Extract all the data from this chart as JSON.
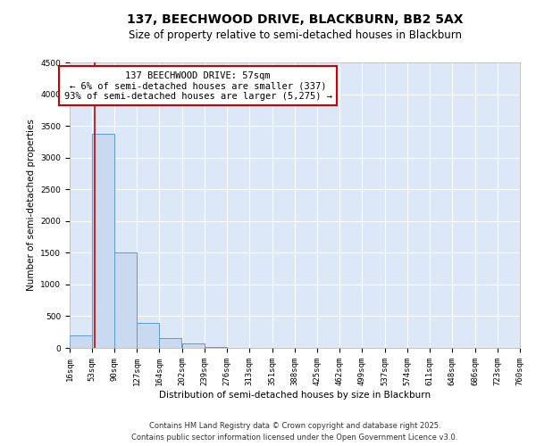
{
  "title": "137, BEECHWOOD DRIVE, BLACKBURN, BB2 5AX",
  "subtitle": "Size of property relative to semi-detached houses in Blackburn",
  "xlabel": "Distribution of semi-detached houses by size in Blackburn",
  "ylabel": "Number of semi-detached properties",
  "bin_edges": [
    16,
    53,
    90,
    127,
    164,
    202,
    239,
    276,
    313,
    351,
    388,
    425,
    462,
    499,
    537,
    574,
    611,
    648,
    686,
    723,
    760
  ],
  "bin_labels": [
    "16sqm",
    "53sqm",
    "90sqm",
    "127sqm",
    "164sqm",
    "202sqm",
    "239sqm",
    "276sqm",
    "313sqm",
    "351sqm",
    "388sqm",
    "425sqm",
    "462sqm",
    "499sqm",
    "537sqm",
    "574sqm",
    "611sqm",
    "648sqm",
    "686sqm",
    "723sqm",
    "760sqm"
  ],
  "bar_heights": [
    200,
    3380,
    1500,
    390,
    155,
    70,
    10,
    0,
    0,
    0,
    0,
    0,
    0,
    0,
    0,
    0,
    0,
    0,
    0,
    5
  ],
  "bar_color": "#c9d9f0",
  "bar_edge_color": "#5b9bd5",
  "vline_x": 57,
  "vline_color": "#cc0000",
  "annotation_title": "137 BEECHWOOD DRIVE: 57sqm",
  "annotation_line1": "← 6% of semi-detached houses are smaller (337)",
  "annotation_line2": "93% of semi-detached houses are larger (5,275) →",
  "annotation_box_color": "#ffffff",
  "annotation_box_edge": "#cc0000",
  "ylim": [
    0,
    4500
  ],
  "yticks": [
    0,
    500,
    1000,
    1500,
    2000,
    2500,
    3000,
    3500,
    4000,
    4500
  ],
  "bg_color": "#dce8f8",
  "footer_line1": "Contains HM Land Registry data © Crown copyright and database right 2025.",
  "footer_line2": "Contains public sector information licensed under the Open Government Licence v3.0.",
  "title_fontsize": 10,
  "subtitle_fontsize": 8.5,
  "axis_label_fontsize": 7.5,
  "tick_fontsize": 6.5,
  "annotation_fontsize": 7.5
}
